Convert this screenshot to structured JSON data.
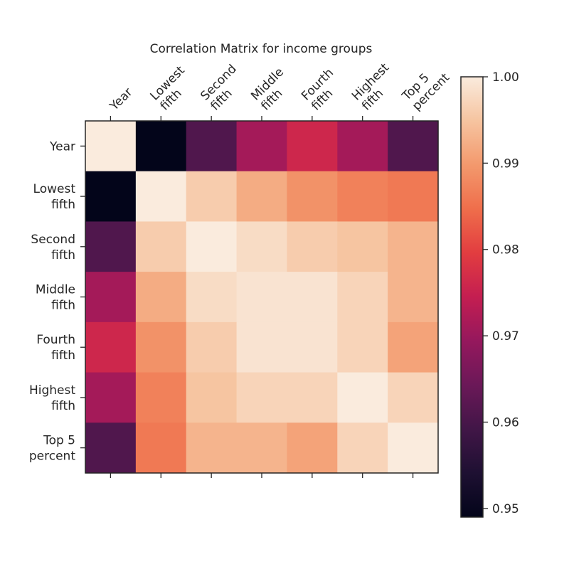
{
  "chart_data": {
    "type": "heatmap",
    "title": "Correlation Matrix for income groups",
    "xlabel": "",
    "ylabel": "",
    "categories": [
      [
        "Year"
      ],
      [
        "Lowest",
        "fifth"
      ],
      [
        "Second",
        "fifth"
      ],
      [
        "Middle",
        "fifth"
      ],
      [
        "Fourth",
        "fifth"
      ],
      [
        "Highest",
        "fifth"
      ],
      [
        "Top 5",
        "percent"
      ]
    ],
    "matrix": [
      [
        1.0,
        0.949,
        0.961,
        0.971,
        0.976,
        0.971,
        0.961
      ],
      [
        0.949,
        1.0,
        0.996,
        0.992,
        0.989,
        0.987,
        0.986
      ],
      [
        0.961,
        0.996,
        1.0,
        0.998,
        0.996,
        0.995,
        0.993
      ],
      [
        0.971,
        0.992,
        0.998,
        0.999,
        0.999,
        0.997,
        0.993
      ],
      [
        0.976,
        0.989,
        0.996,
        0.999,
        0.999,
        0.997,
        0.991
      ],
      [
        0.971,
        0.987,
        0.995,
        0.997,
        0.997,
        1.0,
        0.997
      ],
      [
        0.961,
        0.986,
        0.993,
        0.993,
        0.991,
        0.997,
        1.0
      ]
    ],
    "vmin": 0.949,
    "vmax": 1.0,
    "colormap": "rocket",
    "x_ticks_position": "top",
    "colorbar": {
      "position": "right",
      "ticks": [
        "0.95",
        "0.96",
        "0.97",
        "0.98",
        "0.99",
        "1.00"
      ],
      "tick_values": [
        0.95,
        0.96,
        0.97,
        0.98,
        0.99,
        1.0
      ]
    }
  }
}
